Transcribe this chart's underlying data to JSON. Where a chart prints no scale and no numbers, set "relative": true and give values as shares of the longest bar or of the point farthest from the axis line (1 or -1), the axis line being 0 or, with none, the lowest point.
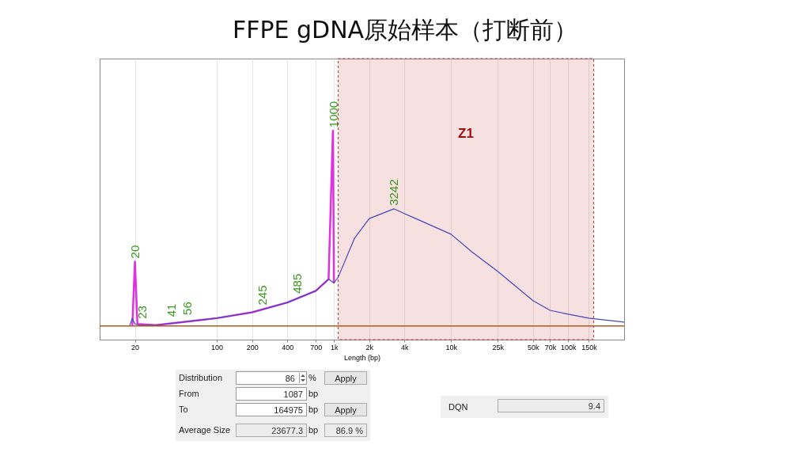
{
  "chart_data": {
    "type": "line",
    "title": "FFPE gDNA原始样本（打断前）",
    "xlabel": "Length (bp)",
    "relative": true,
    "log": "x",
    "grid": "x",
    "marker": "none",
    "xlim": [
      10,
      300000
    ],
    "xticks": [
      20,
      100,
      200,
      400,
      700,
      {
        "value": 1000,
        "label": "1k"
      },
      {
        "value": 2000,
        "label": "2k"
      },
      {
        "value": 4000,
        "label": "4k"
      },
      {
        "value": 10000,
        "label": "10k"
      },
      {
        "value": 25000,
        "label": "25k"
      },
      {
        "value": 50000,
        "label": "50k"
      },
      {
        "value": 70000,
        "label": "70k"
      },
      {
        "value": 100000,
        "label": "100k"
      },
      {
        "value": 150000,
        "label": "150k"
      }
    ],
    "series": [
      {
        "color": "#e030e0",
        "x": [
          19,
          20,
          21,
          30,
          100,
          200,
          400,
          700,
          900,
          980,
          1000
        ],
        "values": [
          0,
          0.33,
          0.01,
          0.004,
          0.04,
          0.07,
          0.12,
          0.18,
          0.24,
          1.0,
          0.22
        ]
      },
      {
        "color": "#4848b8",
        "x": [
          18,
          19,
          20,
          22,
          30,
          100,
          200,
          400,
          700,
          900,
          1000,
          1087,
          1500,
          2000,
          3242,
          5000,
          10000,
          15000,
          25000,
          50000,
          70000,
          100000,
          150000,
          300000
        ],
        "values": [
          0,
          0.04,
          0.01,
          0.004,
          0.004,
          0.04,
          0.07,
          0.12,
          0.18,
          0.24,
          0.22,
          0.25,
          0.45,
          0.55,
          0.6,
          0.55,
          0.47,
          0.38,
          0.28,
          0.13,
          0.08,
          0.06,
          0.04,
          0.02
        ]
      }
    ],
    "ref_lines": [
      {
        "axis": "y",
        "value": 0,
        "color": "#b05a20"
      }
    ],
    "bands": [
      {
        "axis": "x",
        "from": 1087,
        "to": 164975,
        "label": "Z1",
        "color": "#c03030"
      }
    ],
    "annotations": [
      {
        "text": "20",
        "x": 20,
        "y": 0.33
      },
      {
        "text": "1000",
        "x": 1000,
        "y": 1.0
      },
      {
        "text": "3242",
        "x": 3242,
        "y": 0.6
      },
      {
        "text": "485",
        "x": 485,
        "y": 0.15
      },
      {
        "text": "245",
        "x": 245,
        "y": 0.09
      },
      {
        "text": "23",
        "x": 23,
        "y": 0.02
      },
      {
        "text": "41",
        "x": 41,
        "y": 0.03
      },
      {
        "text": "56",
        "x": 56,
        "y": 0.04
      },
      "Distribution",
      "86",
      "%",
      "Apply",
      "From",
      "1087",
      "bp",
      "To",
      "164975",
      "bp",
      "Apply",
      "Average Size",
      "23677.3",
      "bp",
      "86.9 %",
      "DQN",
      "9.4"
    ]
  }
}
